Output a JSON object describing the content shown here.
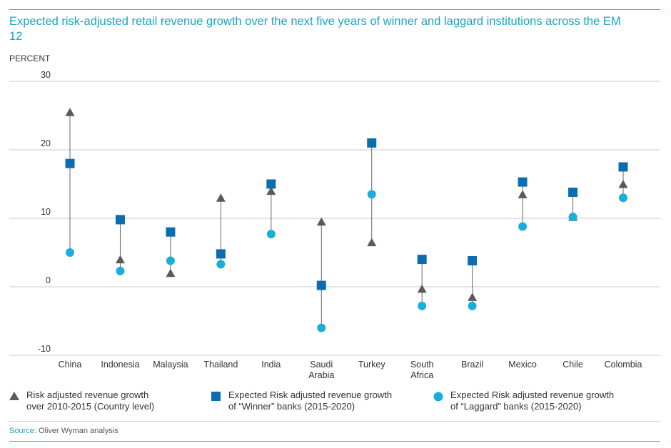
{
  "title": "Expected risk-adjusted retail revenue growth over the next five years of winner and laggard institutions across the EM 12",
  "source_label": "Source:",
  "source_text": "Oliver Wyman analysis",
  "colors": {
    "accent": "#1aa3c3",
    "triangle": "#5a5a5a",
    "square": "#0b6db0",
    "circle": "#1aaed8",
    "grid": "#c8c8c8"
  },
  "chart_data": {
    "type": "scatter",
    "ylabel": "PERCENT",
    "ylim": [
      -10,
      30
    ],
    "yticks": [
      30,
      20,
      10,
      0,
      -10
    ],
    "grid": true,
    "legend_position": "bottom",
    "categories": [
      "China",
      "Indonesia",
      "Malaysia",
      "Thailand",
      "India",
      "Saudi\nArabia",
      "Turkey",
      "South\nAfrica",
      "Brazil",
      "Mexico",
      "Chile",
      "Colombia"
    ],
    "series": [
      {
        "name": "Risk adjusted revenue growth\nover 2010-2015 (Country level)",
        "marker": "triangle",
        "values": [
          25.5,
          4,
          2,
          13,
          14,
          9.5,
          6.5,
          -0.3,
          -1.5,
          13.5,
          10.2,
          15
        ]
      },
      {
        "name": "Expected Risk adjusted revenue growth\nof “Winner” banks (2015-2020)",
        "marker": "square",
        "values": [
          18,
          9.8,
          8,
          4.8,
          15,
          0.2,
          21,
          4,
          3.8,
          15.3,
          13.8,
          17.5
        ]
      },
      {
        "name": "Expected Risk adjusted revenue growth\nof “Laggard” banks (2015-2020)",
        "marker": "circle",
        "values": [
          5,
          2.3,
          3.8,
          3.3,
          7.7,
          -6,
          13.5,
          -2.8,
          -2.8,
          8.8,
          10.2,
          13
        ]
      }
    ]
  }
}
